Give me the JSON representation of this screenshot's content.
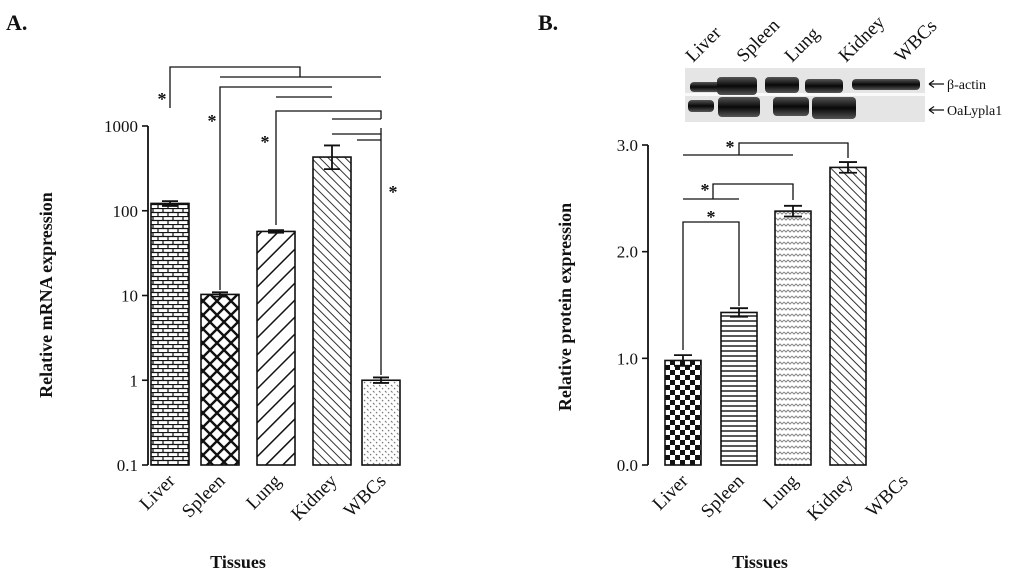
{
  "chart_data": [
    {
      "panel": "A.",
      "type": "bar",
      "scale": "log",
      "xlabel": "Tissues",
      "ylabel": "Relative mRNA expression",
      "yticks": [
        "0.1",
        "1",
        "10",
        "100",
        "1000"
      ],
      "ylim": [
        0.1,
        1000
      ],
      "categories": [
        "Liver",
        "Spleen",
        "Lung",
        "Kidney",
        "WBCs"
      ],
      "values": [
        122,
        10.3,
        57,
        430,
        1.0
      ],
      "error_high": [
        130,
        10.9,
        59,
        590,
        1.08
      ],
      "error_low": [
        114,
        9.7,
        55,
        310,
        0.93
      ],
      "patterns": [
        "brick",
        "crosshatch",
        "diag-down",
        "diag-up",
        "dots"
      ],
      "significance_marker": "*"
    },
    {
      "panel": "B.",
      "type": "bar",
      "scale": "linear",
      "xlabel": "Tissues",
      "ylabel": "Relative protein expression",
      "yticks": [
        "0.0",
        "1.0",
        "2.0",
        "3.0"
      ],
      "ylim": [
        0,
        3
      ],
      "categories": [
        "Liver",
        "Spleen",
        "Lung",
        "Kidney",
        "WBCs"
      ],
      "values": [
        0.98,
        1.43,
        2.38,
        2.79,
        0
      ],
      "errors": [
        0.05,
        0.04,
        0.05,
        0.05,
        0
      ],
      "patterns": [
        "checker",
        "horizontal",
        "zigzag",
        "diag-up",
        "none"
      ],
      "significance_marker": "*",
      "blot": {
        "lanes": [
          "Liver",
          "Spleen",
          "Lung",
          "Kidney",
          "WBCs"
        ],
        "rows": [
          "β-actin",
          "OaLypla1"
        ]
      }
    }
  ]
}
